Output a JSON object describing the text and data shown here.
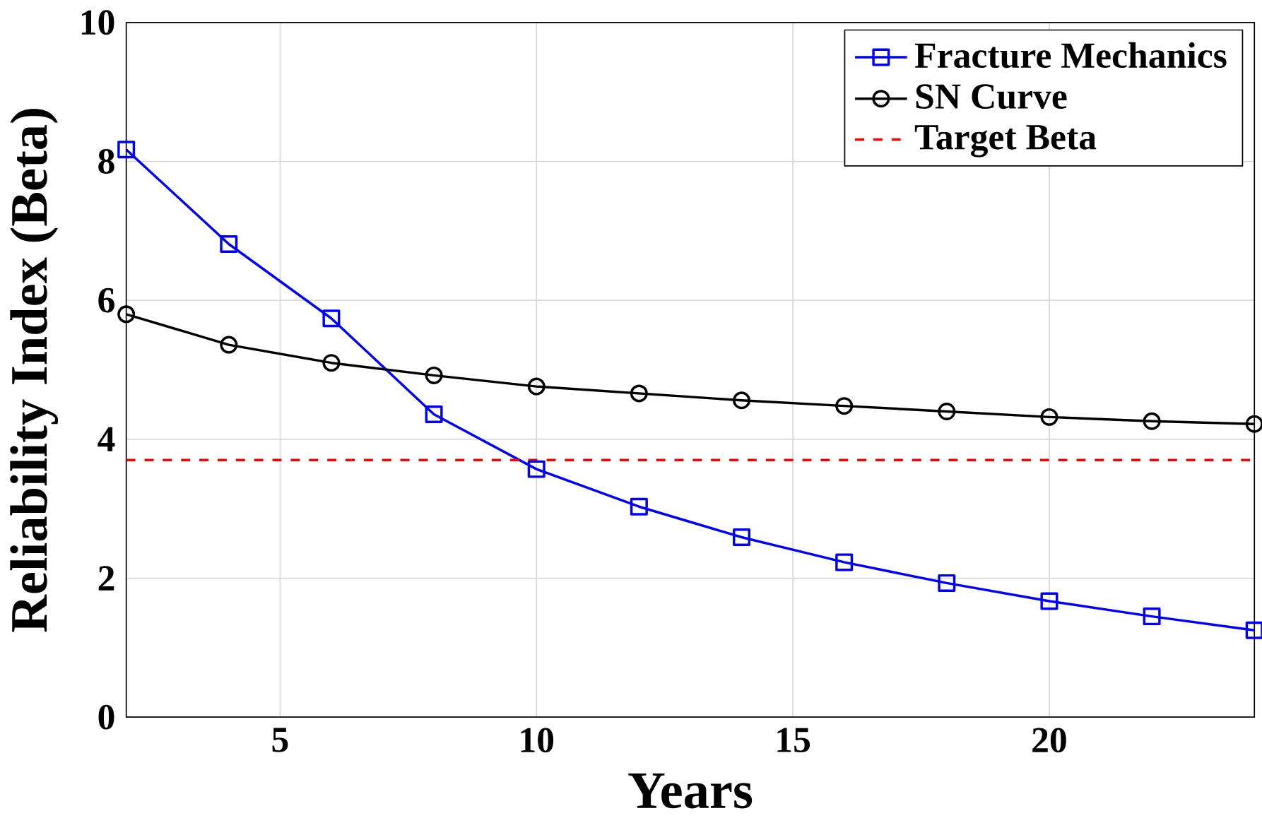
{
  "chart_data": {
    "type": "line",
    "xlabel": "Years",
    "ylabel": "Reliability Index (Beta)",
    "xlim": [
      2,
      24
    ],
    "ylim": [
      0,
      10
    ],
    "xticks": [
      5,
      10,
      15,
      20
    ],
    "yticks": [
      0,
      2,
      4,
      6,
      8,
      10
    ],
    "grid": true,
    "legend": "top right",
    "x": [
      2,
      4,
      6,
      8,
      10,
      12,
      14,
      16,
      18,
      20,
      22,
      24
    ],
    "series": [
      {
        "name": "Fracture Mechanics",
        "color": "#0000ff",
        "marker": "square",
        "values": [
          8.17,
          6.81,
          5.74,
          4.36,
          3.57,
          3.03,
          2.59,
          2.23,
          1.93,
          1.67,
          1.45,
          1.25
        ]
      },
      {
        "name": "SN Curve",
        "color": "#000000",
        "marker": "circle",
        "values": [
          5.8,
          5.36,
          5.1,
          4.92,
          4.76,
          4.66,
          4.56,
          4.48,
          4.4,
          4.32,
          4.26,
          4.22
        ]
      }
    ],
    "ref_lines": [
      {
        "axis": "y",
        "value": 3.7,
        "label": "Target Beta",
        "color": "#ff0000",
        "line_style": "dashed"
      }
    ]
  }
}
